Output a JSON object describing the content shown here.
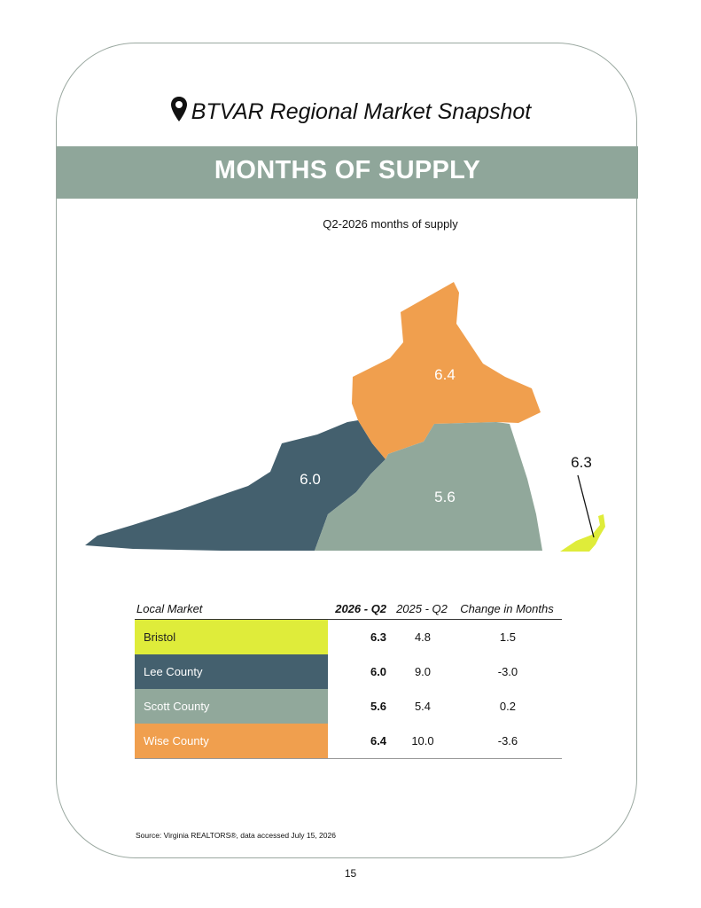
{
  "header": {
    "title": "BTVAR Regional Market Snapshot",
    "icon": "map-pin-icon"
  },
  "banner": {
    "title": "MONTHS OF SUPPLY"
  },
  "map": {
    "title": "Q2-2026 months of supply",
    "regions": [
      {
        "name": "Bristol",
        "value": "6.3",
        "color": "#dfec3a"
      },
      {
        "name": "Lee County",
        "value": "6.0",
        "color": "#44606e"
      },
      {
        "name": "Scott County",
        "value": "5.6",
        "color": "#91a89b"
      },
      {
        "name": "Wise County",
        "value": "6.4",
        "color": "#f09f4e"
      }
    ]
  },
  "table": {
    "headers": [
      "Local Market",
      "2026 - Q2",
      "2025 - Q2",
      "Change in Months"
    ],
    "rows": [
      {
        "market": "Bristol",
        "q2026": "6.3",
        "q2025": "4.8",
        "change": "1.5",
        "color": "#dfec3a",
        "text_color": "#222222"
      },
      {
        "market": "Lee County",
        "q2026": "6.0",
        "q2025": "9.0",
        "change": "-3.0",
        "color": "#44606e",
        "text_color": "#ffffff"
      },
      {
        "market": "Scott County",
        "q2026": "5.6",
        "q2025": "5.4",
        "change": "0.2",
        "color": "#91a89b",
        "text_color": "#ffffff"
      },
      {
        "market": "Wise County",
        "q2026": "6.4",
        "q2025": "10.0",
        "change": "-3.6",
        "color": "#f09f4e",
        "text_color": "#ffffff"
      }
    ]
  },
  "source": "Source: Virginia REALTORS®, data accessed July 15, 2026",
  "page_number": "15"
}
